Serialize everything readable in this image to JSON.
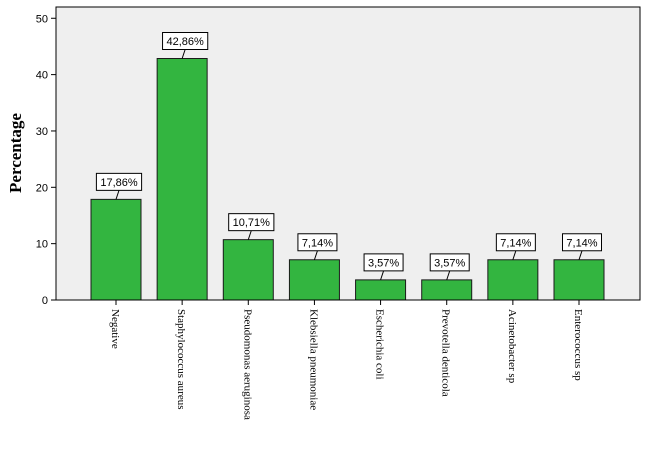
{
  "chart_data": {
    "type": "bar",
    "categories": [
      "Negative",
      "Staphylococcus aureus",
      "Pseudomonas aeruginosa",
      "Klebsiella pneumoniae",
      "Escherichia coli",
      "Prevotella denticola",
      "Acinetobacter sp",
      "Enterococcus sp"
    ],
    "values": [
      17.86,
      42.86,
      10.71,
      7.14,
      3.57,
      3.57,
      7.14,
      7.14
    ],
    "data_labels": [
      "17,86%",
      "42,86%",
      "10,71%",
      "7,14%",
      "3,57%",
      "3,57%",
      "7,14%",
      "7,14%"
    ],
    "ylabel": "Percentage",
    "xlabel": "",
    "ylim": [
      0,
      52
    ],
    "yticks": [
      0,
      10,
      20,
      30,
      40,
      50
    ],
    "grid": false,
    "colors": {
      "bar": "#33b540",
      "bar_stroke": "#1a1a1a",
      "plot_bg": "#efefef",
      "axis": "#000000"
    }
  }
}
